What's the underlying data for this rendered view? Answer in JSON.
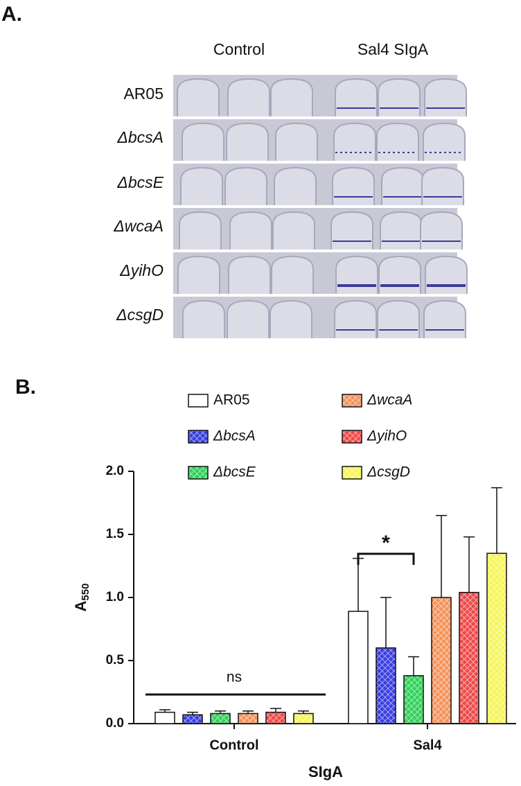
{
  "panel_a": {
    "label": "A.",
    "column_labels": [
      "Control",
      "Sal4 SIgA"
    ],
    "row_labels": [
      "AR05",
      "ΔbcsA",
      "ΔbcsE",
      "ΔwcaA",
      "ΔyihO",
      "ΔcsgD"
    ]
  },
  "chart_data": {
    "type": "bar",
    "panel_label": "B.",
    "x_label": "SIgA",
    "y_label": {
      "base": "A",
      "subscript": "550"
    },
    "categories": [
      "Control",
      "Sal4"
    ],
    "series": [
      {
        "name": "AR05",
        "color": "#ffffff",
        "values": [
          0.09,
          0.89
        ],
        "errors": [
          0.02,
          0.42
        ]
      },
      {
        "name": "ΔbcsA",
        "color": "#3b3fe0",
        "values": [
          0.07,
          0.6
        ],
        "errors": [
          0.02,
          0.4
        ]
      },
      {
        "name": "ΔbcsE",
        "color": "#33d05a",
        "values": [
          0.08,
          0.38
        ],
        "errors": [
          0.02,
          0.15
        ]
      },
      {
        "name": "ΔwcaA",
        "color": "#f4935a",
        "values": [
          0.08,
          1.0
        ],
        "errors": [
          0.02,
          0.65
        ]
      },
      {
        "name": "ΔyihO",
        "color": "#ee4a4a",
        "values": [
          0.09,
          1.04
        ],
        "errors": [
          0.03,
          0.44
        ]
      },
      {
        "name": "ΔcsgD",
        "color": "#f5f55a",
        "values": [
          0.08,
          1.35
        ],
        "errors": [
          0.02,
          0.52
        ]
      }
    ],
    "ylim": [
      0,
      2
    ],
    "yticks": [
      {
        "value": 0,
        "label": "0.0"
      },
      0.5,
      {
        "value": 1,
        "label": "1.0"
      },
      1.5,
      {
        "value": 2,
        "label": "2.0"
      }
    ],
    "annotations": [
      {
        "text": "ns"
      },
      {
        "text": "*"
      }
    ]
  }
}
